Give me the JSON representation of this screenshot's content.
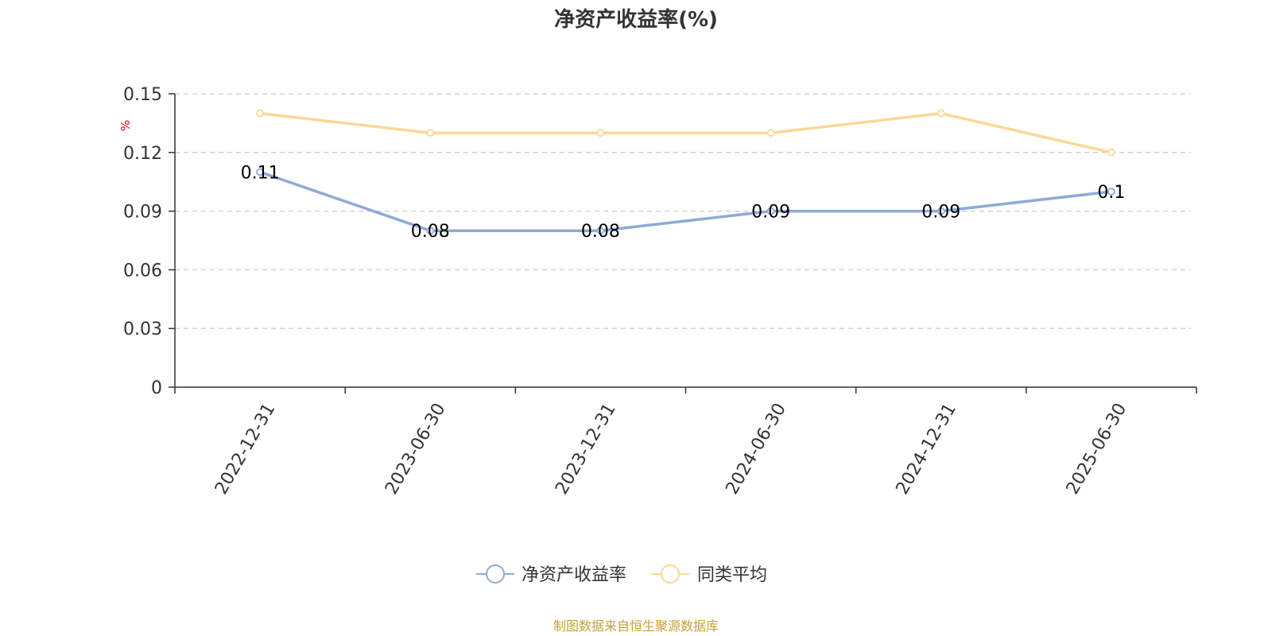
{
  "chart_data": {
    "type": "line",
    "title": "净资产收益率(%)",
    "ylabel": "%",
    "xlabel": "",
    "categories": [
      "2022-12-31",
      "2023-06-30",
      "2023-12-31",
      "2024-06-30",
      "2024-12-31",
      "2025-06-30"
    ],
    "ylim": [
      0,
      0.15
    ],
    "yticks": [
      0,
      0.03,
      0.06,
      0.09,
      0.12,
      0.15
    ],
    "ytick_labels": [
      "0",
      "0.03",
      "0.06",
      "0.09",
      "0.12",
      "0.15"
    ],
    "grid": true,
    "legend_position": "bottom-center",
    "series": [
      {
        "name": "净资产收益率",
        "color": "#8eaad6",
        "values": [
          0.11,
          0.08,
          0.08,
          0.09,
          0.09,
          0.1
        ],
        "data_labels": [
          "0.11",
          "0.08",
          "0.08",
          "0.09",
          "0.09",
          "0.1"
        ],
        "show_labels": true
      },
      {
        "name": "同类平均",
        "color": "#fad996",
        "values": [
          0.14,
          0.13,
          0.13,
          0.13,
          0.14,
          0.12
        ],
        "show_labels": false
      }
    ]
  },
  "source_note": "制图数据来自恒生聚源数据库"
}
